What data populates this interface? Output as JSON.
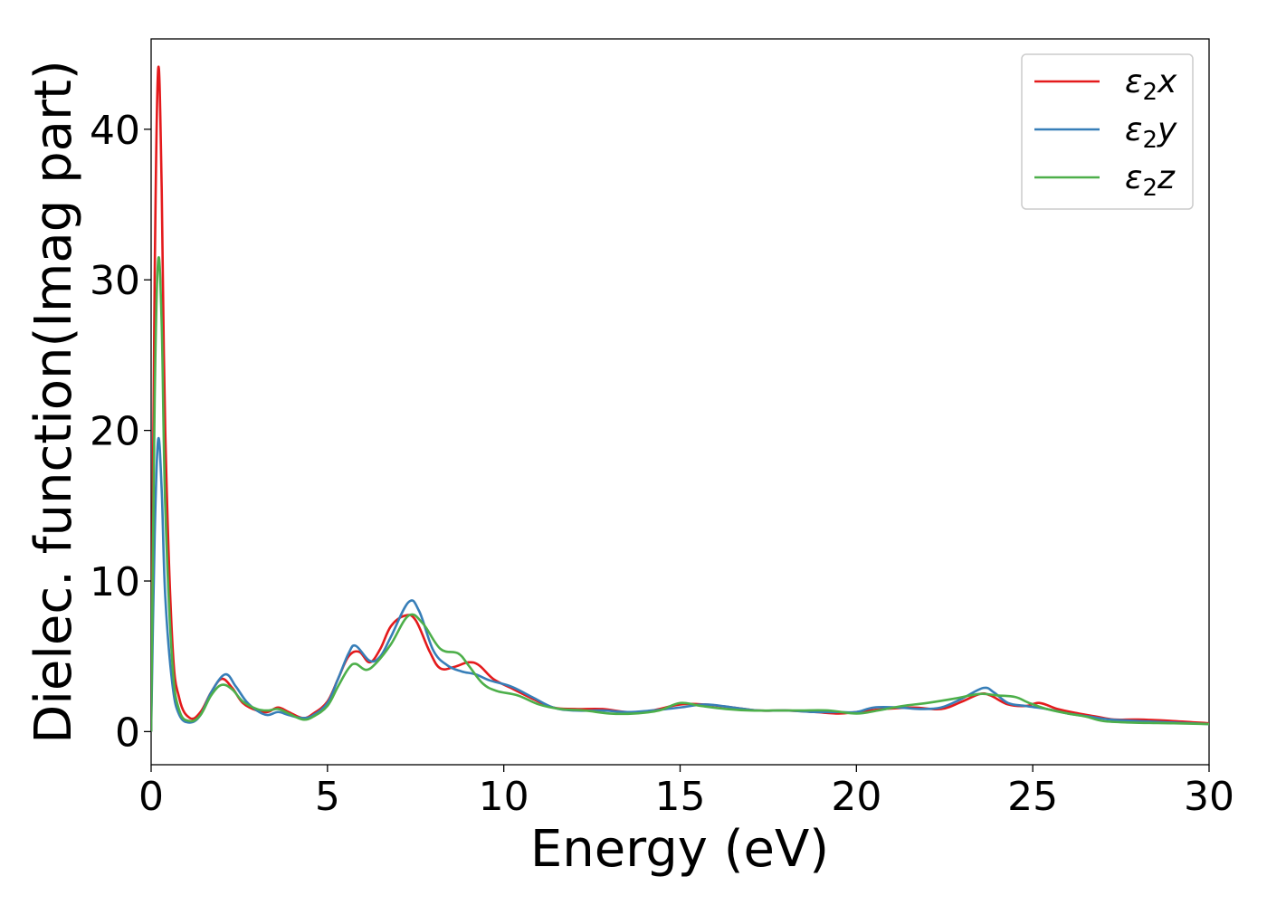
{
  "chart_data": {
    "type": "line",
    "xlabel": "Energy (eV)",
    "ylabel": "Dielec. function(Imag part)",
    "xlim": [
      0,
      30
    ],
    "ylim": [
      -2.2,
      46
    ],
    "xticks": [
      0,
      5,
      10,
      15,
      20,
      25,
      30
    ],
    "yticks": [
      0,
      10,
      20,
      30,
      40
    ],
    "grid": false,
    "legend_position": "top-right",
    "series": [
      {
        "name": "ε2x",
        "legend": {
          "base": "ε",
          "sub": "2",
          "suffix": "x"
        },
        "color": "#e41a1c",
        "points": [
          [
            0,
            0
          ],
          [
            0.1,
            30
          ],
          [
            0.2,
            44
          ],
          [
            0.3,
            36
          ],
          [
            0.4,
            20
          ],
          [
            0.6,
            6
          ],
          [
            0.8,
            2.2
          ],
          [
            1.1,
            0.9
          ],
          [
            1.4,
            1.3
          ],
          [
            1.7,
            2.6
          ],
          [
            2.0,
            3.5
          ],
          [
            2.3,
            2.9
          ],
          [
            2.6,
            1.9
          ],
          [
            3.0,
            1.4
          ],
          [
            3.3,
            1.3
          ],
          [
            3.6,
            1.6
          ],
          [
            3.9,
            1.3
          ],
          [
            4.3,
            0.9
          ],
          [
            4.6,
            1.2
          ],
          [
            5.0,
            2.0
          ],
          [
            5.3,
            3.5
          ],
          [
            5.6,
            5.0
          ],
          [
            5.9,
            5.3
          ],
          [
            6.2,
            4.6
          ],
          [
            6.5,
            5.5
          ],
          [
            6.8,
            7.0
          ],
          [
            7.2,
            7.7
          ],
          [
            7.5,
            7.4
          ],
          [
            7.9,
            5.3
          ],
          [
            8.2,
            4.2
          ],
          [
            8.6,
            4.3
          ],
          [
            9.0,
            4.6
          ],
          [
            9.3,
            4.4
          ],
          [
            9.7,
            3.5
          ],
          [
            10.2,
            2.9
          ],
          [
            10.8,
            2.2
          ],
          [
            11.4,
            1.6
          ],
          [
            12.0,
            1.5
          ],
          [
            12.8,
            1.5
          ],
          [
            13.5,
            1.3
          ],
          [
            14.2,
            1.4
          ],
          [
            15.0,
            1.8
          ],
          [
            15.7,
            1.8
          ],
          [
            16.5,
            1.6
          ],
          [
            17.2,
            1.4
          ],
          [
            18.0,
            1.4
          ],
          [
            18.8,
            1.3
          ],
          [
            19.5,
            1.2
          ],
          [
            20.0,
            1.3
          ],
          [
            20.8,
            1.5
          ],
          [
            21.6,
            1.6
          ],
          [
            22.4,
            1.5
          ],
          [
            23.0,
            2.0
          ],
          [
            23.5,
            2.5
          ],
          [
            23.8,
            2.4
          ],
          [
            24.3,
            1.8
          ],
          [
            24.8,
            1.7
          ],
          [
            25.2,
            1.9
          ],
          [
            25.7,
            1.5
          ],
          [
            26.3,
            1.2
          ],
          [
            26.8,
            1.0
          ],
          [
            27.3,
            0.8
          ],
          [
            28.0,
            0.8
          ],
          [
            29.0,
            0.7
          ],
          [
            30.0,
            0.55
          ]
        ]
      },
      {
        "name": "ε2y",
        "legend": {
          "base": "ε",
          "sub": "2",
          "suffix": "y"
        },
        "color": "#377eb8",
        "points": [
          [
            0,
            0
          ],
          [
            0.1,
            13
          ],
          [
            0.2,
            19.4
          ],
          [
            0.3,
            16
          ],
          [
            0.4,
            9
          ],
          [
            0.6,
            3.2
          ],
          [
            0.8,
            1.1
          ],
          [
            1.1,
            0.6
          ],
          [
            1.4,
            1.1
          ],
          [
            1.7,
            2.6
          ],
          [
            2.1,
            3.8
          ],
          [
            2.4,
            3.0
          ],
          [
            2.7,
            2.0
          ],
          [
            3.0,
            1.4
          ],
          [
            3.3,
            1.1
          ],
          [
            3.6,
            1.3
          ],
          [
            3.9,
            1.1
          ],
          [
            4.3,
            0.9
          ],
          [
            4.6,
            1.1
          ],
          [
            5.0,
            1.9
          ],
          [
            5.3,
            3.5
          ],
          [
            5.6,
            5.2
          ],
          [
            5.8,
            5.7
          ],
          [
            6.2,
            4.7
          ],
          [
            6.5,
            5.0
          ],
          [
            6.8,
            6.3
          ],
          [
            7.3,
            8.6
          ],
          [
            7.6,
            8.0
          ],
          [
            8.0,
            5.4
          ],
          [
            8.4,
            4.4
          ],
          [
            8.8,
            4.0
          ],
          [
            9.2,
            3.8
          ],
          [
            9.6,
            3.4
          ],
          [
            10.2,
            3.0
          ],
          [
            10.8,
            2.3
          ],
          [
            11.4,
            1.6
          ],
          [
            12.0,
            1.4
          ],
          [
            12.8,
            1.4
          ],
          [
            13.5,
            1.3
          ],
          [
            14.2,
            1.4
          ],
          [
            15.0,
            1.6
          ],
          [
            15.7,
            1.8
          ],
          [
            16.5,
            1.6
          ],
          [
            17.2,
            1.4
          ],
          [
            18.0,
            1.4
          ],
          [
            18.8,
            1.3
          ],
          [
            19.5,
            1.3
          ],
          [
            20.0,
            1.3
          ],
          [
            20.5,
            1.6
          ],
          [
            21.2,
            1.6
          ],
          [
            21.8,
            1.5
          ],
          [
            22.4,
            1.6
          ],
          [
            23.0,
            2.2
          ],
          [
            23.6,
            2.9
          ],
          [
            23.9,
            2.6
          ],
          [
            24.3,
            1.9
          ],
          [
            24.8,
            1.7
          ],
          [
            25.4,
            1.5
          ],
          [
            26.0,
            1.2
          ],
          [
            26.6,
            1.0
          ],
          [
            27.2,
            0.8
          ],
          [
            28.0,
            0.7
          ],
          [
            29.0,
            0.6
          ],
          [
            30.0,
            0.5
          ]
        ]
      },
      {
        "name": "ε2z",
        "legend": {
          "base": "ε",
          "sub": "2",
          "suffix": "z"
        },
        "color": "#4daf4a",
        "points": [
          [
            0,
            0
          ],
          [
            0.1,
            22
          ],
          [
            0.2,
            31.3
          ],
          [
            0.3,
            27
          ],
          [
            0.4,
            15
          ],
          [
            0.6,
            4.6
          ],
          [
            0.8,
            1.4
          ],
          [
            1.1,
            0.7
          ],
          [
            1.4,
            1.1
          ],
          [
            1.7,
            2.4
          ],
          [
            2.0,
            3.1
          ],
          [
            2.3,
            2.8
          ],
          [
            2.6,
            2.0
          ],
          [
            3.0,
            1.5
          ],
          [
            3.3,
            1.4
          ],
          [
            3.6,
            1.5
          ],
          [
            3.9,
            1.2
          ],
          [
            4.3,
            0.8
          ],
          [
            4.6,
            1.0
          ],
          [
            5.0,
            1.7
          ],
          [
            5.3,
            3.0
          ],
          [
            5.6,
            4.2
          ],
          [
            5.8,
            4.5
          ],
          [
            6.1,
            4.1
          ],
          [
            6.4,
            4.6
          ],
          [
            6.8,
            5.8
          ],
          [
            7.3,
            7.7
          ],
          [
            7.7,
            7.2
          ],
          [
            8.2,
            5.5
          ],
          [
            8.7,
            5.2
          ],
          [
            9.0,
            4.4
          ],
          [
            9.4,
            3.2
          ],
          [
            9.8,
            2.7
          ],
          [
            10.4,
            2.4
          ],
          [
            11.0,
            1.8
          ],
          [
            11.6,
            1.5
          ],
          [
            12.3,
            1.4
          ],
          [
            13.0,
            1.2
          ],
          [
            13.7,
            1.2
          ],
          [
            14.4,
            1.4
          ],
          [
            15.0,
            1.9
          ],
          [
            15.6,
            1.7
          ],
          [
            16.3,
            1.5
          ],
          [
            17.0,
            1.4
          ],
          [
            17.7,
            1.4
          ],
          [
            18.4,
            1.4
          ],
          [
            19.2,
            1.4
          ],
          [
            20.0,
            1.2
          ],
          [
            20.6,
            1.4
          ],
          [
            21.3,
            1.7
          ],
          [
            22.0,
            1.9
          ],
          [
            22.8,
            2.2
          ],
          [
            23.5,
            2.5
          ],
          [
            24.0,
            2.4
          ],
          [
            24.5,
            2.3
          ],
          [
            24.9,
            1.9
          ],
          [
            25.4,
            1.5
          ],
          [
            26.0,
            1.2
          ],
          [
            26.5,
            1.0
          ],
          [
            27.0,
            0.7
          ],
          [
            27.8,
            0.6
          ],
          [
            29.0,
            0.55
          ],
          [
            30.0,
            0.5
          ]
        ]
      }
    ]
  }
}
